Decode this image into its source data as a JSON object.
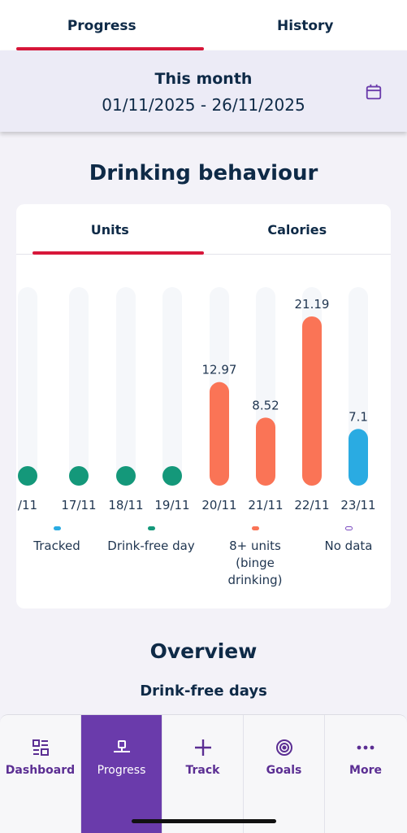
{
  "top_tabs": [
    {
      "label": "Progress",
      "active": true
    },
    {
      "label": "History",
      "active": false
    }
  ],
  "period": {
    "title": "This month",
    "range": "01/11/2025 - 26/11/2025",
    "icon": "calendar-icon"
  },
  "drinking": {
    "title": "Drinking behaviour",
    "tabs": [
      {
        "label": "Units",
        "active": true
      },
      {
        "label": "Calories",
        "active": false
      }
    ]
  },
  "chart_data": {
    "type": "bar",
    "categories": [
      "/11",
      "17/11",
      "18/11",
      "19/11",
      "20/11",
      "21/11",
      "22/11",
      "23/11"
    ],
    "values": [
      0,
      0,
      0,
      0,
      12.97,
      8.52,
      21.19,
      7.1
    ],
    "value_labels": [
      "",
      "",
      "",
      "",
      "12.97",
      "8.52",
      "21.19",
      "7.1"
    ],
    "status": [
      "drink-free",
      "drink-free",
      "drink-free",
      "drink-free",
      "binge",
      "binge",
      "binge",
      "tracked"
    ],
    "ylim": [
      0,
      21.19
    ],
    "colors": {
      "tracked": "#2aabe2",
      "drink-free": "#14987a",
      "binge": "#fa7456",
      "track": "#f5f7fa"
    }
  },
  "legend": [
    {
      "label": "Tracked",
      "color": "#2aabe2",
      "outline": false
    },
    {
      "label": "Drink-free day",
      "color": "#14987a",
      "outline": false
    },
    {
      "label": "8+ units (binge drinking)",
      "color": "#fa7456",
      "outline": false
    },
    {
      "label": "No data",
      "color": "#7b4cc0",
      "outline": true
    }
  ],
  "overview": {
    "title": "Overview",
    "subtitle": "Drink-free days"
  },
  "bottom_nav": [
    {
      "label": "Dashboard",
      "icon": "dashboard-icon",
      "active": false
    },
    {
      "label": "Progress",
      "icon": "progress-icon",
      "active": true
    },
    {
      "label": "Track",
      "icon": "plus-icon",
      "active": false
    },
    {
      "label": "Goals",
      "icon": "target-icon",
      "active": false
    },
    {
      "label": "More",
      "icon": "more-icon",
      "active": false
    }
  ]
}
